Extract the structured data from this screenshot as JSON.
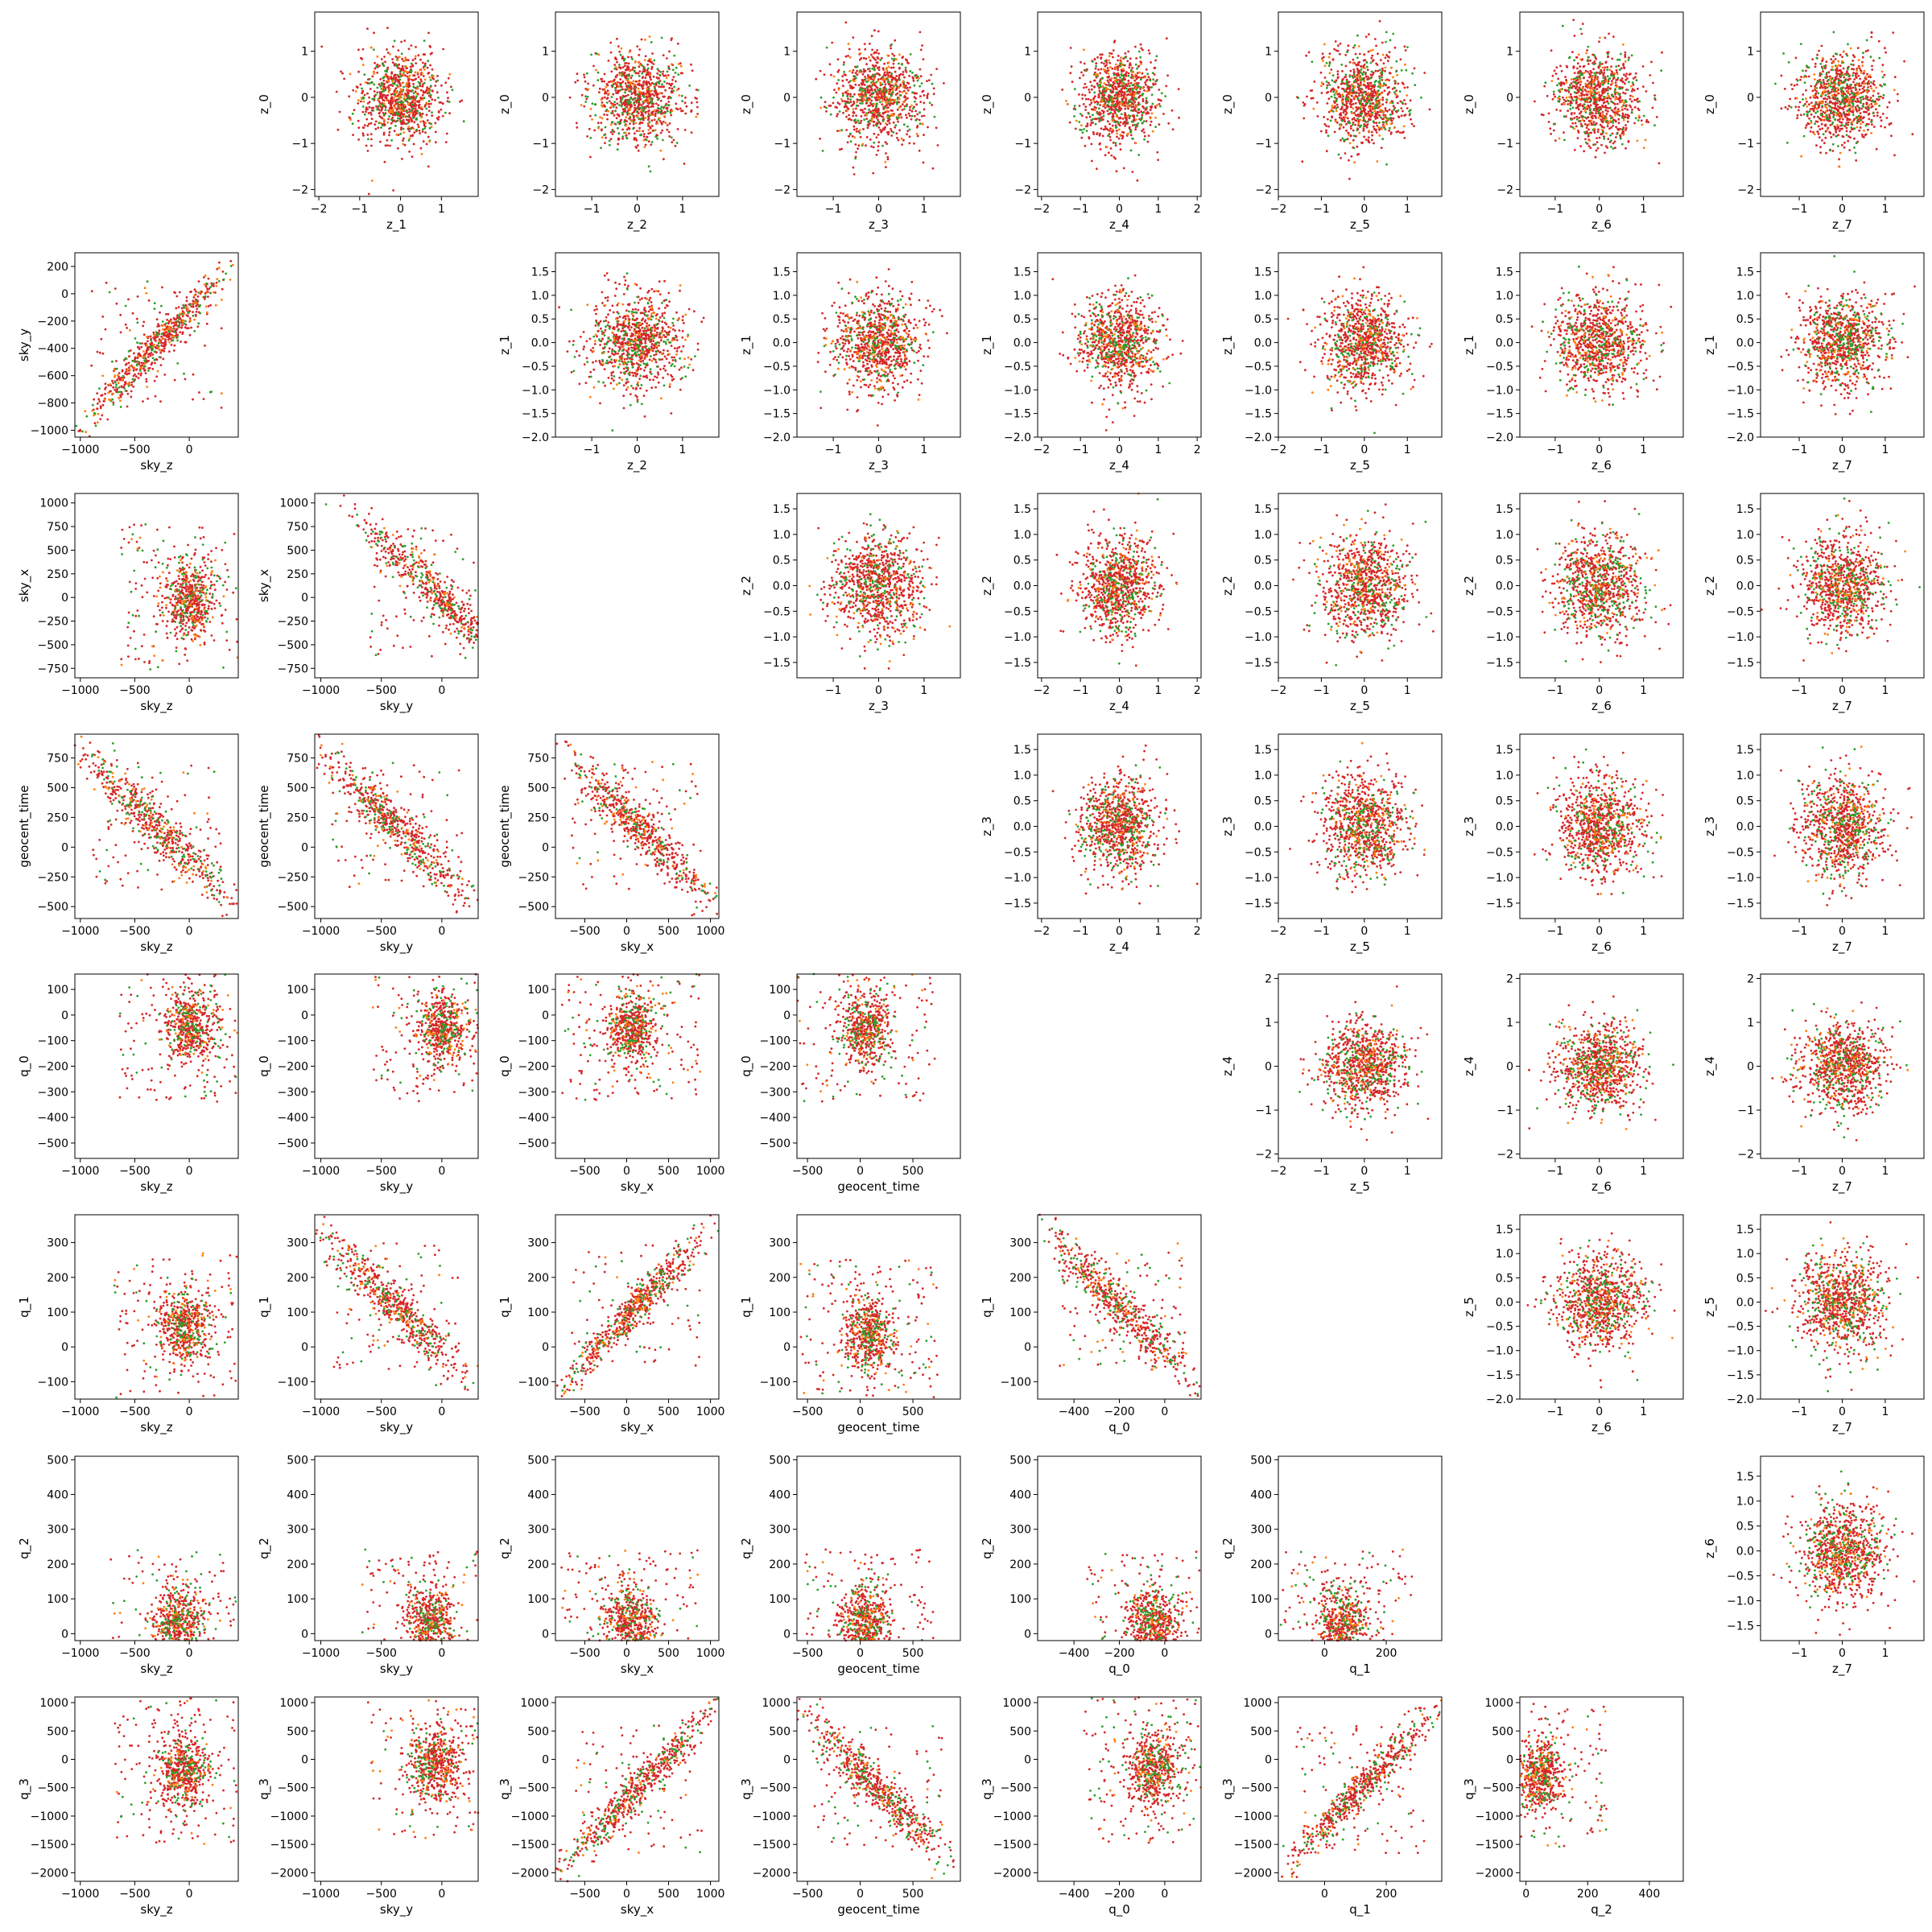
{
  "figure": {
    "style": {
      "colors": {
        "red": "#d62728",
        "green": "#2ca02c",
        "orange": "#ff7f0e",
        "axes": "#000000",
        "background": "#ffffff"
      }
    }
  },
  "chart_data": {
    "type": "scatter",
    "layout": "corner pair-plot; upper triangle: z_i (rows) vs z_j (cols); lower triangle: q_3,q_2,q_1,q_0,geocent_time,sky_x,sky_y,sky_z pairs",
    "series": [
      {
        "color": "#2ca02c"
      },
      {
        "color": "#ff7f0e"
      },
      {
        "color": "#d62728"
      }
    ],
    "variables": {
      "z_0": {
        "ticks": [
          -2,
          -1,
          0,
          1
        ],
        "ylim": [
          -2.15,
          1.85
        ]
      },
      "z_1": {
        "ticks": [
          -2.0,
          -1.5,
          -1.0,
          -0.5,
          0.0,
          0.5,
          1.0,
          1.5
        ],
        "ticks_x": [
          -2,
          -1,
          0,
          1
        ],
        "ylim": [
          -2.0,
          1.9
        ],
        "xlim": [
          -2.1,
          1.9
        ]
      },
      "z_2": {
        "ticks": [
          -1.5,
          -1.0,
          -0.5,
          0.0,
          0.5,
          1.0,
          1.5
        ],
        "ticks_x": [
          -1,
          0,
          1
        ],
        "lim": [
          -1.8,
          1.8
        ]
      },
      "z_3": {
        "ticks": [
          -1.5,
          -1.0,
          -0.5,
          0.0,
          0.5,
          1.0,
          1.5
        ],
        "ticks_x": [
          -1,
          0,
          1
        ],
        "lim": [
          -1.8,
          1.8
        ]
      },
      "z_4": {
        "ticks": [
          -2,
          -1,
          0,
          1,
          2
        ],
        "lim": [
          -2.1,
          2.1
        ]
      },
      "z_5": {
        "ticks": [
          -2.0,
          -1.5,
          -1.0,
          -0.5,
          0.0,
          0.5,
          1.0,
          1.5
        ],
        "ticks_x": [
          -2,
          -1,
          0,
          1
        ],
        "lim": [
          -2.0,
          1.8
        ]
      },
      "z_6": {
        "ticks": [
          -1.5,
          -1.0,
          -0.5,
          0.0,
          0.5,
          1.0,
          1.5
        ],
        "ticks_x": [
          -1,
          0,
          1
        ],
        "lim": [
          -1.8,
          1.9
        ]
      },
      "z_7": {
        "ticks": [
          -1,
          0,
          1
        ],
        "lim": [
          -1.9,
          1.9
        ]
      },
      "sky_z": {
        "ticks": [
          -1000,
          -500,
          0
        ],
        "lim": [
          -1050,
          450
        ]
      },
      "sky_y": {
        "ticks": [
          -1000,
          -800,
          -600,
          -400,
          -200,
          0,
          200
        ],
        "ticks_x": [
          -1000,
          -500,
          0
        ],
        "lim": [
          -1050,
          300
        ]
      },
      "sky_x": {
        "ticks": [
          -750,
          -500,
          -250,
          0,
          250,
          500,
          750,
          1000
        ],
        "ticks_x": [
          -500,
          0,
          500,
          1000
        ],
        "lim": [
          -850,
          1100
        ]
      },
      "geocent_time": {
        "ticks": [
          -500,
          -250,
          0,
          250,
          500,
          750
        ],
        "ticks_x": [
          -500,
          0,
          500
        ],
        "lim": [
          -600,
          950
        ]
      },
      "q_0": {
        "ticks": [
          -500,
          -400,
          -300,
          -200,
          -100,
          0,
          100
        ],
        "ticks_x": [
          -400,
          -200,
          0
        ],
        "lim": [
          -560,
          160
        ]
      },
      "q_1": {
        "ticks": [
          -100,
          0,
          100,
          200,
          300
        ],
        "ticks_x": [
          0,
          200
        ],
        "lim": [
          -150,
          380
        ]
      },
      "q_2": {
        "ticks": [
          0,
          100,
          200,
          300,
          400,
          500
        ],
        "ticks_x": [
          0,
          200,
          400
        ],
        "lim": [
          -20,
          510
        ]
      },
      "q_3": {
        "ticks": [
          -2000,
          -1500,
          -1000,
          -500,
          0,
          500,
          1000
        ],
        "lim": [
          -2150,
          1100
        ]
      }
    },
    "rows": [
      {
        "y": "z_0",
        "panels": [
          {
            "x": "z_1",
            "shape": "blob"
          },
          {
            "x": "z_2",
            "shape": "blob"
          },
          {
            "x": "z_3",
            "shape": "blob"
          },
          {
            "x": "z_4",
            "shape": "blob"
          },
          {
            "x": "z_5",
            "shape": "blob"
          },
          {
            "x": "z_6",
            "shape": "blob"
          },
          {
            "x": "z_7",
            "shape": "blob"
          }
        ]
      },
      {
        "y": "sky_y",
        "panels": [
          {
            "x": "sky_z",
            "shape": "corr-pos",
            "tail": "lower-left"
          }
        ]
      },
      {
        "y": "z_1",
        "panels": [
          {
            "x": "z_2",
            "shape": "blob"
          },
          {
            "x": "z_3",
            "shape": "blob"
          },
          {
            "x": "z_4",
            "shape": "blob"
          },
          {
            "x": "z_5",
            "shape": "blob"
          },
          {
            "x": "z_6",
            "shape": "blob"
          },
          {
            "x": "z_7",
            "shape": "blob"
          }
        ]
      },
      {
        "y": "sky_x",
        "panels": [
          {
            "x": "sky_z",
            "shape": "cluster",
            "center": [
              0,
              0
            ]
          },
          {
            "x": "sky_y",
            "shape": "corr-neg",
            "center": [
              -50,
              50
            ]
          }
        ]
      },
      {
        "y": "z_2",
        "panels": [
          {
            "x": "z_3",
            "shape": "blob"
          },
          {
            "x": "z_4",
            "shape": "blob"
          },
          {
            "x": "z_5",
            "shape": "blob"
          },
          {
            "x": "z_6",
            "shape": "blob"
          },
          {
            "x": "z_7",
            "shape": "blob"
          }
        ]
      },
      {
        "y": "geocent_time",
        "panels": [
          {
            "x": "sky_z",
            "shape": "corr-neg"
          },
          {
            "x": "sky_y",
            "shape": "corr-neg"
          },
          {
            "x": "sky_x",
            "shape": "corr-neg"
          }
        ]
      },
      {
        "y": "z_3",
        "panels": [
          {
            "x": "z_4",
            "shape": "blob"
          },
          {
            "x": "z_5",
            "shape": "blob"
          },
          {
            "x": "z_6",
            "shape": "blob"
          },
          {
            "x": "z_7",
            "shape": "blob"
          }
        ]
      },
      {
        "y": "q_0",
        "panels": [
          {
            "x": "sky_z",
            "shape": "cluster",
            "center": [
              0,
              -50
            ]
          },
          {
            "x": "sky_y",
            "shape": "cluster",
            "center": [
              0,
              -50
            ]
          },
          {
            "x": "sky_x",
            "shape": "cluster",
            "center": [
              50,
              -50
            ]
          },
          {
            "x": "geocent_time",
            "shape": "cluster",
            "center": [
              50,
              -50
            ]
          }
        ]
      },
      {
        "y": "z_4",
        "panels": [
          {
            "x": "z_5",
            "shape": "blob"
          },
          {
            "x": "z_6",
            "shape": "blob"
          },
          {
            "x": "z_7",
            "shape": "blob"
          }
        ]
      },
      {
        "y": "q_1",
        "panels": [
          {
            "x": "sky_z",
            "shape": "cluster",
            "center": [
              -50,
              60
            ]
          },
          {
            "x": "sky_y",
            "shape": "corr-neg"
          },
          {
            "x": "sky_x",
            "shape": "corr-pos"
          },
          {
            "x": "geocent_time",
            "shape": "cluster",
            "center": [
              80,
              40
            ]
          },
          {
            "x": "q_0",
            "shape": "corr-neg"
          }
        ]
      },
      {
        "y": "z_5",
        "panels": [
          {
            "x": "z_6",
            "shape": "blob"
          },
          {
            "x": "z_7",
            "shape": "blob"
          }
        ]
      },
      {
        "y": "q_2",
        "panels": [
          {
            "x": "sky_z",
            "shape": "cluster",
            "center": [
              -100,
              30
            ]
          },
          {
            "x": "sky_y",
            "shape": "cluster",
            "center": [
              -100,
              30
            ]
          },
          {
            "x": "sky_x",
            "shape": "cluster",
            "center": [
              50,
              30
            ]
          },
          {
            "x": "geocent_time",
            "shape": "cluster",
            "center": [
              50,
              30
            ]
          },
          {
            "x": "q_0",
            "shape": "cluster",
            "center": [
              -50,
              30
            ]
          },
          {
            "x": "q_1",
            "shape": "cluster",
            "center": [
              60,
              30
            ]
          }
        ]
      },
      {
        "y": "z_6",
        "panels": [
          {
            "x": "z_7",
            "shape": "blob"
          }
        ]
      },
      {
        "y": "q_3",
        "panels": [
          {
            "x": "sky_z",
            "shape": "cluster",
            "center": [
              -50,
              -200
            ]
          },
          {
            "x": "sky_y",
            "shape": "cluster",
            "center": [
              -50,
              -100
            ]
          },
          {
            "x": "sky_x",
            "shape": "corr-pos"
          },
          {
            "x": "geocent_time",
            "shape": "corr-neg"
          },
          {
            "x": "q_0",
            "shape": "cluster",
            "center": [
              -50,
              -200
            ]
          },
          {
            "x": "q_1",
            "shape": "corr-pos"
          },
          {
            "x": "q_2",
            "shape": "cluster",
            "center": [
              40,
              -300
            ]
          }
        ]
      }
    ]
  }
}
